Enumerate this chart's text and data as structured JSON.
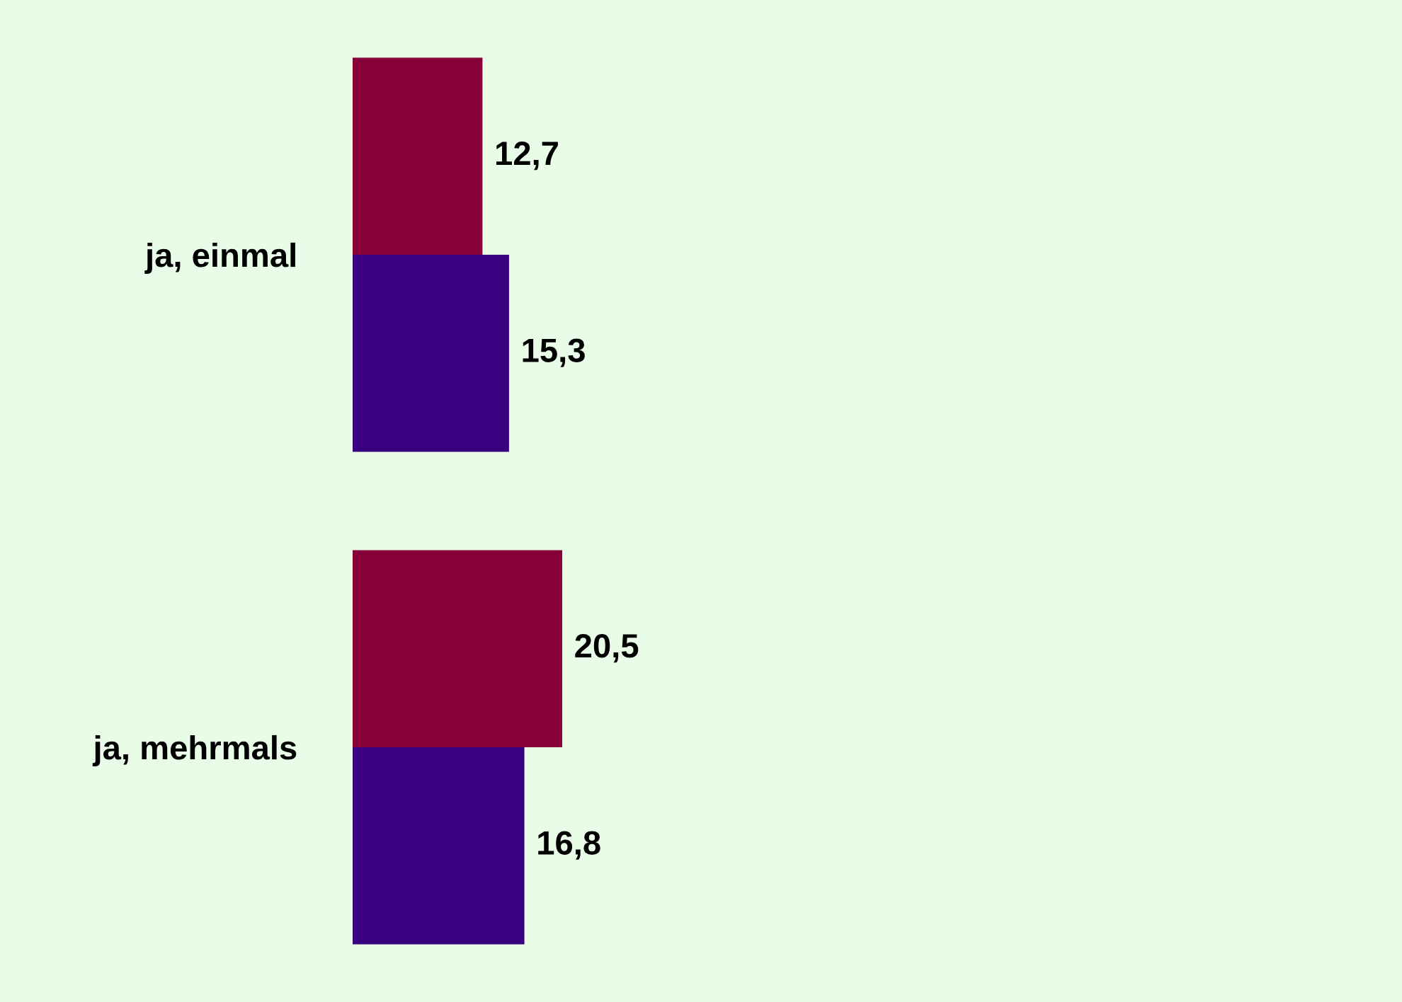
{
  "chart_data": {
    "type": "bar",
    "orientation": "horizontal",
    "categories": [
      "ja, einmal",
      "ja, mehrmals"
    ],
    "series": [
      {
        "color": "#870038",
        "values": [
          12.7,
          20.5
        ],
        "value_labels": [
          "12,7",
          "20,5"
        ]
      },
      {
        "color": "#390080",
        "values": [
          15.3,
          16.8
        ],
        "value_labels": [
          "15,3",
          "16,8"
        ]
      }
    ],
    "grid": false,
    "legend": false
  }
}
